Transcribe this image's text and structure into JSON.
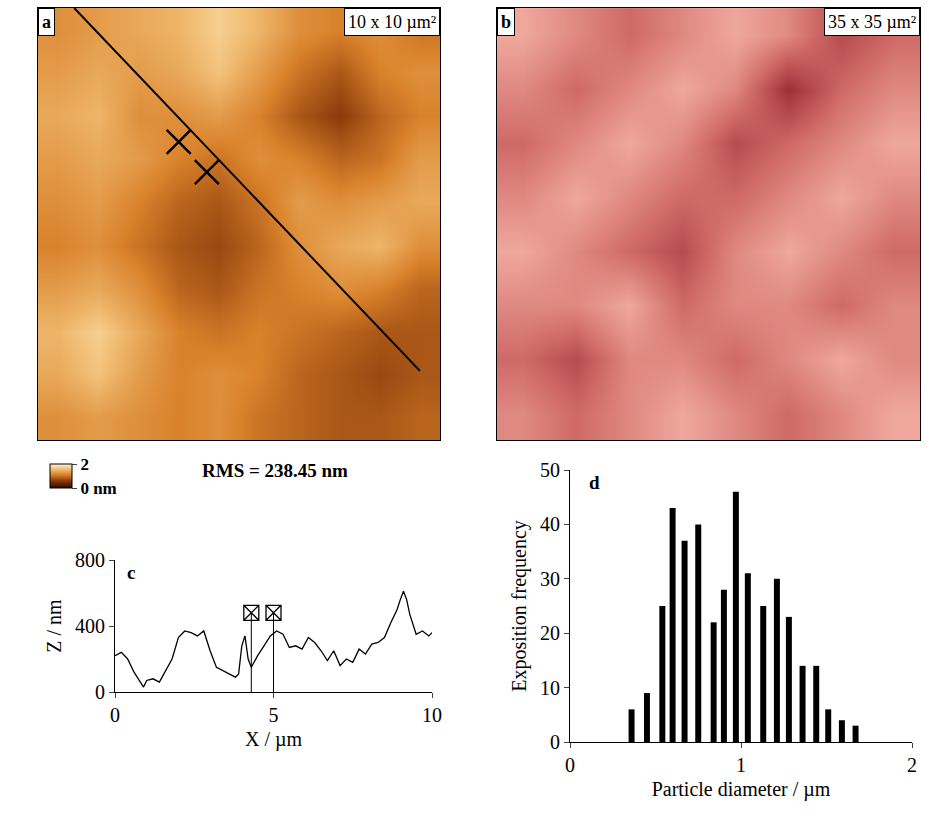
{
  "chart_data": [
    {
      "panel": "a",
      "type": "heatmap",
      "title": "10 x 10 µm²",
      "x": [
        0.5,
        1.5,
        2.5,
        3.5,
        4.5,
        5.5,
        6.5,
        7.5,
        8.5,
        9.5
      ],
      "y": [
        0.5,
        1.5,
        2.5,
        3.5,
        4.5,
        5.5,
        6.5,
        7.5,
        8.5,
        9.5
      ],
      "z": [
        [
          1.2,
          1.3,
          1.2,
          1.1,
          1.2,
          1.0,
          0.9,
          0.8,
          0.8,
          0.9
        ],
        [
          1.4,
          1.6,
          1.3,
          1.1,
          1.2,
          1.1,
          0.9,
          0.8,
          0.7,
          0.8
        ],
        [
          1.5,
          1.7,
          1.4,
          1.1,
          1.0,
          1.1,
          1.0,
          0.9,
          0.8,
          0.8
        ],
        [
          1.3,
          1.4,
          1.2,
          0.9,
          0.8,
          1.0,
          1.1,
          1.2,
          1.1,
          0.9
        ],
        [
          1.1,
          1.2,
          1.0,
          0.8,
          0.7,
          0.9,
          1.2,
          1.4,
          1.5,
          1.2
        ],
        [
          1.2,
          1.3,
          1.1,
          0.9,
          0.8,
          1.0,
          1.3,
          1.2,
          1.3,
          1.4
        ],
        [
          1.3,
          1.4,
          1.3,
          1.1,
          1.0,
          1.2,
          1.1,
          0.9,
          1.0,
          1.3
        ],
        [
          1.4,
          1.5,
          1.2,
          1.2,
          1.3,
          1.1,
          0.8,
          0.6,
          0.9,
          1.1
        ],
        [
          1.3,
          1.4,
          1.3,
          1.4,
          1.6,
          1.3,
          1.0,
          0.8,
          1.1,
          1.2
        ],
        [
          1.2,
          1.3,
          1.4,
          1.5,
          1.7,
          1.5,
          1.2,
          1.1,
          1.2,
          1.0
        ]
      ],
      "zlim": [
        0,
        2
      ],
      "zticks": [
        {
          "value": 0,
          "label": "0 nm"
        },
        2
      ],
      "xlim": [
        0,
        10
      ],
      "ylim": [
        0,
        10
      ],
      "tick_labels": false,
      "annotations": [
        "RMS = 238.45 nm"
      ],
      "profile_line": {
        "x": [
          0.9,
          9.5
        ],
        "y": [
          10,
          1.6
        ]
      },
      "cursor_marks": {
        "x": [
          3.5,
          4.2
        ],
        "y": [
          6.9,
          6.2
        ]
      }
    },
    {
      "panel": "b",
      "type": "heatmap",
      "title": "35 x 35 µm²",
      "x": [
        2.19,
        6.56,
        10.94,
        15.31,
        19.69,
        24.06,
        28.44,
        32.81
      ],
      "y": [
        2.19,
        6.56,
        10.94,
        15.31,
        19.69,
        24.06,
        28.44,
        32.81
      ],
      "z": [
        [
          0.6,
          0.5,
          0.6,
          0.7,
          0.6,
          0.5,
          0.6,
          0.7
        ],
        [
          0.5,
          0.4,
          0.6,
          0.6,
          0.5,
          0.6,
          0.7,
          0.6
        ],
        [
          0.6,
          0.6,
          0.7,
          0.5,
          0.6,
          0.6,
          0.5,
          0.6
        ],
        [
          0.7,
          0.6,
          0.5,
          0.4,
          0.6,
          0.7,
          0.6,
          0.5
        ],
        [
          0.6,
          0.7,
          0.6,
          0.5,
          0.5,
          0.6,
          0.7,
          0.6
        ],
        [
          0.5,
          0.6,
          0.7,
          0.6,
          0.4,
          0.5,
          0.6,
          0.7
        ],
        [
          0.6,
          0.5,
          0.6,
          0.7,
          0.6,
          0.3,
          0.5,
          0.6
        ],
        [
          0.7,
          0.6,
          0.5,
          0.6,
          0.7,
          0.6,
          0.4,
          0.5
        ]
      ],
      "xlim": [
        0,
        35
      ],
      "ylim": [
        0,
        35
      ],
      "tick_labels": false
    },
    {
      "panel": "c",
      "type": "line",
      "x": [
        0,
        0.2,
        0.4,
        0.6,
        0.8,
        0.9,
        1.0,
        1.2,
        1.4,
        1.6,
        1.8,
        2.0,
        2.2,
        2.4,
        2.6,
        2.8,
        3.0,
        3.2,
        3.4,
        3.6,
        3.8,
        3.9,
        4.0,
        4.1,
        4.2,
        4.3,
        4.5,
        4.7,
        4.9,
        5.1,
        5.3,
        5.5,
        5.7,
        5.9,
        6.1,
        6.3,
        6.5,
        6.7,
        6.9,
        7.1,
        7.3,
        7.5,
        7.7,
        7.9,
        8.1,
        8.3,
        8.5,
        8.7,
        8.9,
        9.0,
        9.1,
        9.2,
        9.3,
        9.5,
        9.7,
        9.9,
        10
      ],
      "values": [
        220,
        240,
        200,
        120,
        60,
        30,
        70,
        80,
        60,
        130,
        200,
        330,
        370,
        360,
        340,
        370,
        250,
        150,
        130,
        110,
        90,
        110,
        280,
        340,
        200,
        150,
        220,
        280,
        340,
        370,
        350,
        270,
        280,
        260,
        330,
        300,
        250,
        190,
        250,
        160,
        200,
        180,
        260,
        230,
        290,
        300,
        330,
        420,
        500,
        560,
        610,
        560,
        470,
        350,
        370,
        340,
        360
      ],
      "xlim": [
        0,
        10
      ],
      "xticks": [
        0,
        5,
        10
      ],
      "ylim": [
        0,
        800
      ],
      "yticks": [
        0,
        400,
        800
      ],
      "x_label": "X / µm",
      "y_label": "Z / nm",
      "cursors": {
        "x": [
          4.3,
          5.0
        ],
        "z": [
          480,
          480
        ]
      }
    },
    {
      "panel": "d",
      "type": "bar",
      "x": [
        0.36,
        0.45,
        0.54,
        0.6,
        0.67,
        0.75,
        0.84,
        0.9,
        0.97,
        1.04,
        1.13,
        1.21,
        1.28,
        1.36,
        1.44,
        1.51,
        1.59,
        1.67
      ],
      "values": [
        6,
        9,
        25,
        43,
        37,
        40,
        22,
        28,
        46,
        31,
        25,
        30,
        23,
        14,
        14,
        6,
        4,
        3
      ],
      "xlim": [
        0,
        2
      ],
      "xticks": [
        0,
        1,
        2
      ],
      "ylim": [
        0,
        50
      ],
      "yticks": [
        0,
        10,
        20,
        30,
        40,
        50
      ],
      "x_label": "Particle diameter / µm",
      "y_label": "Exposition frequency",
      "color": "#000000"
    }
  ]
}
